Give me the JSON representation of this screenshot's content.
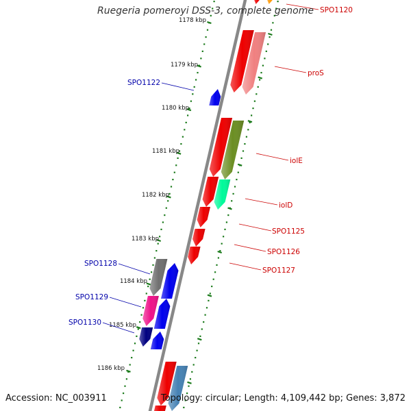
{
  "title": "Ruegeria pomeroyi DSS-3, complete genome",
  "footer": {
    "accession": "Accession: NC_003911",
    "summary": "Topology: circular; Length: 4,109,442 bp; Genes: 3,872"
  },
  "kbp_ticks": [
    "1178 kbp",
    "1179 kbp",
    "1180 kbp",
    "1181 kbp",
    "1182 kbp",
    "1183 kbp",
    "1184 kbp",
    "1185 kbp",
    "1186 kbp"
  ],
  "genes_right": [
    "SPO1120",
    "proS",
    "iolE",
    "iolD",
    "SPO1125",
    "SPO1126",
    "SPO1127"
  ],
  "genes_left": [
    "SPO1122",
    "SPO1128",
    "SPO1129",
    "SPO1130"
  ],
  "colors": {
    "backbone": "#888888",
    "tick": "#1a7a1a",
    "gene_red": "#ee0000",
    "gene_salmon": "#f08080",
    "gene_olive": "#6b8e23",
    "gene_spring": "#00fa9a",
    "gene_orange": "#ff9900",
    "gene_blue": "#0000ee",
    "gene_gray": "#707070",
    "gene_pink": "#ee1289",
    "gene_navy": "#000080",
    "gene_steel": "#4682b4"
  }
}
